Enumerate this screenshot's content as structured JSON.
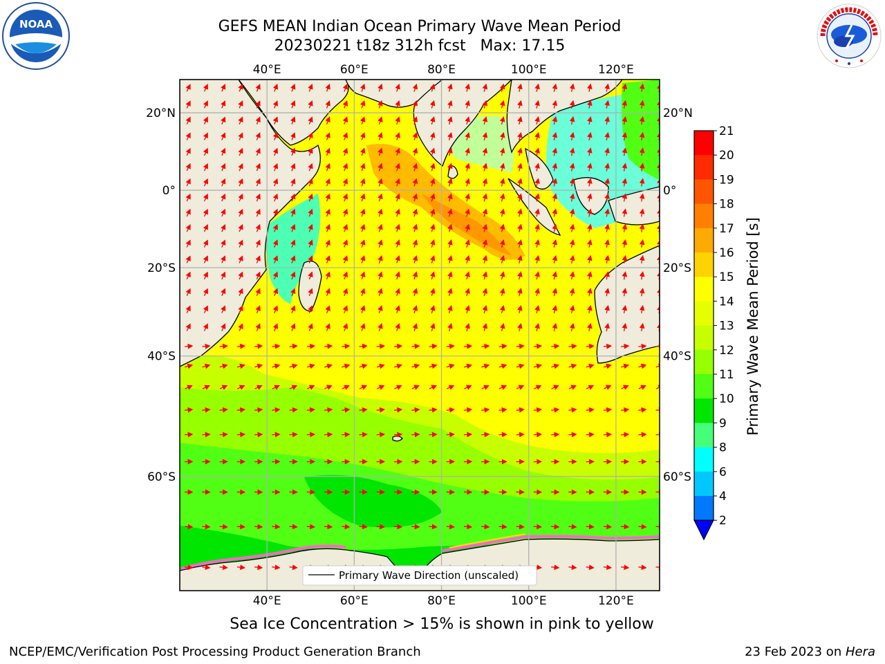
{
  "title": {
    "line1": "GEFS MEAN Indian Ocean Primary Wave Mean Period",
    "line2": "20230221 t18z 312h fcst   Max: 17.15"
  },
  "logos": {
    "noaa": {
      "text": "NOAA",
      "icon": "noaa-logo-icon"
    },
    "nws": {
      "icon": "nws-logo-icon"
    }
  },
  "map": {
    "lon_ticks": [
      "40°E",
      "60°E",
      "80°E",
      "100°E",
      "120°E"
    ],
    "lat_ticks_left": [
      "20°N",
      "0°",
      "20°S",
      "40°S",
      "60°S"
    ],
    "lat_ticks_right": [
      "20°N",
      "0°",
      "20°S",
      "40°S",
      "60°S"
    ],
    "lon_range": [
      20,
      130
    ],
    "lat_range": [
      -72,
      28
    ],
    "legend_label": "Primary Wave Direction (unscaled)",
    "colors": {
      "land": "#efecdc",
      "grid": "#b0b0b0",
      "arrow": "#ff0000"
    }
  },
  "colorbar": {
    "label": "Primary Wave Mean Period [s]",
    "ticks": [
      "21",
      "20",
      "19",
      "18",
      "17",
      "16",
      "15",
      "14",
      "13",
      "12",
      "11",
      "10",
      "9",
      "8",
      "6",
      "4",
      "2"
    ],
    "colors": [
      "#ff0000",
      "#ff2a00",
      "#ff5500",
      "#ff8000",
      "#ffaa00",
      "#ffd200",
      "#ffff00",
      "#e6ff00",
      "#c8ff00",
      "#96ff00",
      "#50ff14",
      "#00e600",
      "#46ff78",
      "#96ffff",
      "#50ffff",
      "#00ffff",
      "#00c8ff",
      "#0078ff",
      "#0000ff"
    ]
  },
  "ice_note": "Sea Ice Concentration > 15% is shown in pink to yellow",
  "footer": {
    "left": "NCEP/EMC/Verification Post Processing Product Generation Branch",
    "right_prefix": "23 Feb 2023 on ",
    "right_italic": "Hera"
  }
}
